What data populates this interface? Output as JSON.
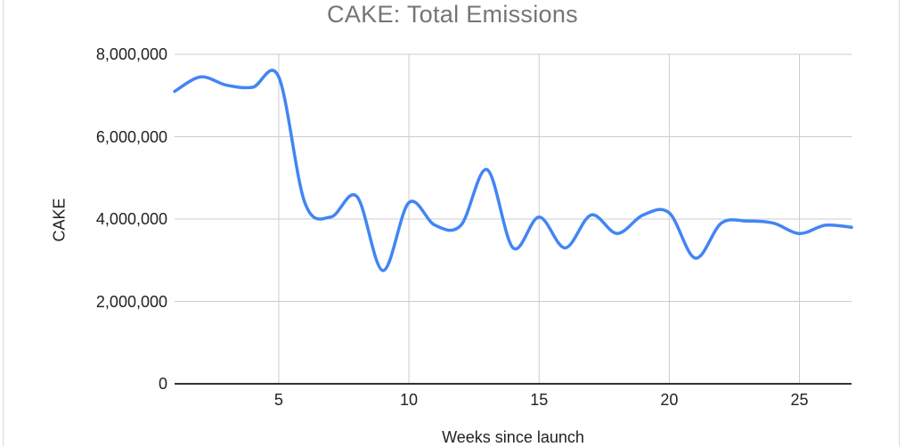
{
  "window": {
    "background": "#ffffff",
    "edge_border_color": "#d9d9d9"
  },
  "chart": {
    "title": "CAKE: Total Emissions",
    "title_color": "#757575",
    "y_axis": {
      "title": "CAKE",
      "tick_values": [
        0,
        2000000,
        4000000,
        6000000,
        8000000
      ],
      "tick_labels": [
        "0",
        "2,000,000",
        "4,000,000",
        "6,000,000",
        "8,000,000"
      ]
    },
    "x_axis": {
      "title": "Weeks since launch",
      "tick_values": [
        5,
        10,
        15,
        20,
        25
      ],
      "tick_labels": [
        "5",
        "10",
        "15",
        "20",
        "25"
      ]
    }
  },
  "chart_data": {
    "type": "line",
    "title": "CAKE: Total Emissions",
    "xlabel": "Weeks since launch",
    "ylabel": "CAKE",
    "x": [
      1,
      2,
      3,
      4,
      5,
      6,
      7,
      8,
      9,
      10,
      11,
      12,
      13,
      14,
      15,
      16,
      17,
      18,
      19,
      20,
      21,
      22,
      23,
      24,
      25,
      26,
      27
    ],
    "values": [
      7100000,
      7450000,
      7250000,
      7200000,
      7450000,
      4400000,
      4050000,
      4550000,
      2750000,
      4400000,
      3850000,
      3850000,
      5200000,
      3300000,
      4050000,
      3300000,
      4100000,
      3650000,
      4100000,
      4150000,
      3050000,
      3900000,
      3950000,
      3900000,
      3650000,
      3850000,
      3800000
    ],
    "series": [
      {
        "name": "CAKE",
        "color": "#4285f4"
      }
    ],
    "xlim": [
      1,
      27
    ],
    "ylim": [
      0,
      8000000
    ],
    "grid": true,
    "smooth": true,
    "legend": "none",
    "line_color": "#4285f4",
    "line_width": 3.5,
    "gridline_color": "#cccccc",
    "baseline_color": "#333333"
  }
}
